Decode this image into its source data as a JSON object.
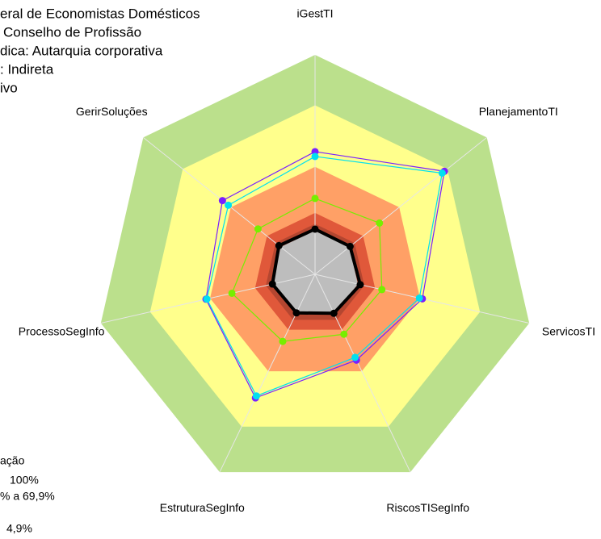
{
  "chart_data": {
    "type": "radar",
    "title_lines": [
      "eral de Economistas Domésticos",
      " Conselho de Profissão",
      "dica: Autarquia corporativa",
      ": Indireta",
      "ivo"
    ],
    "legend_lines": [
      "ação",
      "100%",
      "% a 69,9%",
      "4,9%"
    ],
    "categories": [
      "iGestTI",
      "PlanejamentoTI",
      "ServicosTI",
      "RiscosTISegInfo",
      "EstruturaSegInfo",
      "ProcessoSegInfo",
      "GerirSoluções"
    ],
    "ylim": [
      0,
      100
    ],
    "bands": [
      {
        "from": 77,
        "to": 100,
        "color": "#bbe08c"
      },
      {
        "from": 49,
        "to": 77,
        "color": "#ffff8c"
      },
      {
        "from": 28,
        "to": 49,
        "color": "#ffa066"
      },
      {
        "from": 23,
        "to": 28,
        "color": "#e0583a"
      },
      {
        "from": 20,
        "to": 23,
        "color": "#b44630"
      },
      {
        "from": 0,
        "to": 20,
        "color": "#bdbdbd"
      }
    ],
    "series": [
      {
        "color": "#7a1fff",
        "values": [
          55.9,
          75.3,
          50.1,
          43.4,
          62.5,
          50.9,
          53.9
        ]
      },
      {
        "color": "#00e0f0",
        "values": [
          53.7,
          74,
          48.7,
          42,
          61.5,
          50.5,
          50.5
        ]
      },
      {
        "color": "#77ee00",
        "values": [
          34.6,
          37.5,
          31.2,
          30.3,
          33.9,
          38.8,
          33.2
        ]
      },
      {
        "color": "#000000",
        "values": [
          20.6,
          20.4,
          21.1,
          19.7,
          19.5,
          19.9,
          21
        ],
        "width": 4
      }
    ]
  }
}
